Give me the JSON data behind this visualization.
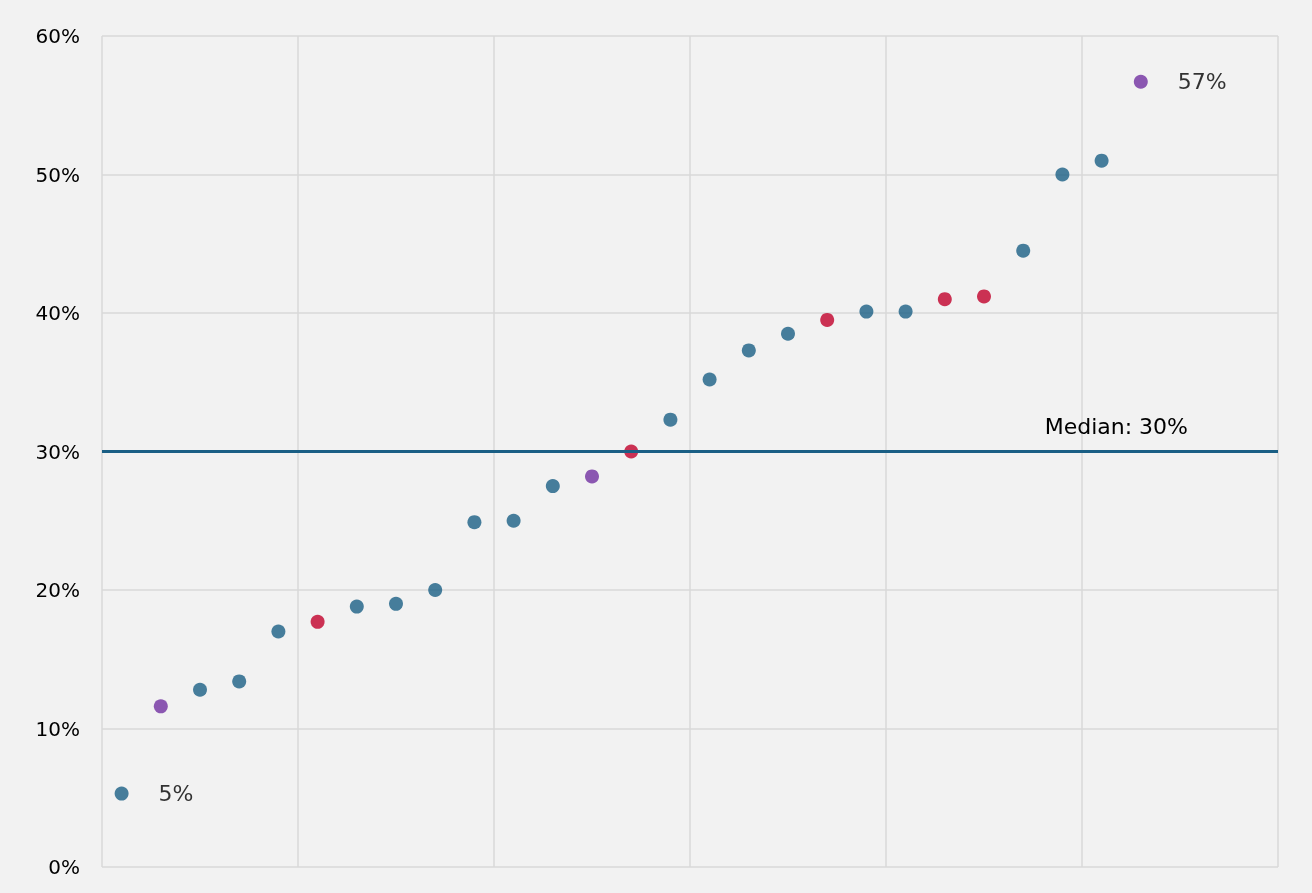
{
  "chart_data": {
    "type": "scatter",
    "categories": [
      null,
      null,
      null,
      null,
      null,
      null,
      null,
      null,
      null,
      null,
      null,
      null,
      null,
      null,
      null,
      null,
      null,
      null,
      null,
      null,
      null,
      null,
      null,
      null,
      null,
      null,
      null,
      null,
      null,
      null
    ],
    "values": [
      5.3,
      11.6,
      12.8,
      13.4,
      17.0,
      17.7,
      18.8,
      19.0,
      20.0,
      24.9,
      25.0,
      27.5,
      28.2,
      30.0,
      32.3,
      35.2,
      37.3,
      38.5,
      39.5,
      40.1,
      40.1,
      41.0,
      41.2,
      44.5,
      50.0,
      51.0,
      56.7,
      null,
      null,
      null
    ],
    "colors": [
      "#1a5f85",
      "#7030a0",
      "#1a5f85",
      "#1a5f85",
      "#1a5f85",
      "#c0002a",
      "#1a5f85",
      "#1a5f85",
      "#1a5f85",
      "#1a5f85",
      "#1a5f85",
      "#1a5f85",
      "#7030a0",
      "#c0002a",
      "#1a5f85",
      "#1a5f85",
      "#1a5f85",
      "#1a5f85",
      "#c0002a",
      "#1a5f85",
      "#1a5f85",
      "#c0002a",
      "#c0002a",
      "#1a5f85",
      "#1a5f85",
      "#1a5f85",
      "#7030a0",
      "#1a5f85",
      "#1a5f85",
      "#1a5f85"
    ],
    "value_labels": [
      "5%",
      null,
      null,
      null,
      null,
      null,
      null,
      null,
      null,
      null,
      null,
      null,
      null,
      null,
      null,
      null,
      null,
      null,
      null,
      null,
      null,
      null,
      null,
      null,
      null,
      null,
      "57%",
      null,
      null,
      null
    ],
    "ylim": [
      0,
      60
    ],
    "yticks": [
      {
        "value": 0,
        "label": "0%"
      },
      {
        "value": 10,
        "label": "10%"
      },
      {
        "value": 20,
        "label": "20%"
      },
      {
        "value": 30,
        "label": "30%"
      },
      {
        "value": 40,
        "label": "40%"
      },
      {
        "value": 50,
        "label": "50%"
      },
      {
        "value": 60,
        "label": "60%"
      }
    ],
    "ref_lines": [
      {
        "axis": "y",
        "value": 30,
        "label": "Median: 30%",
        "color": "#1a5f85",
        "line_style": "solid"
      }
    ],
    "tick_labels": "y",
    "grid": true,
    "marker": "circle"
  }
}
